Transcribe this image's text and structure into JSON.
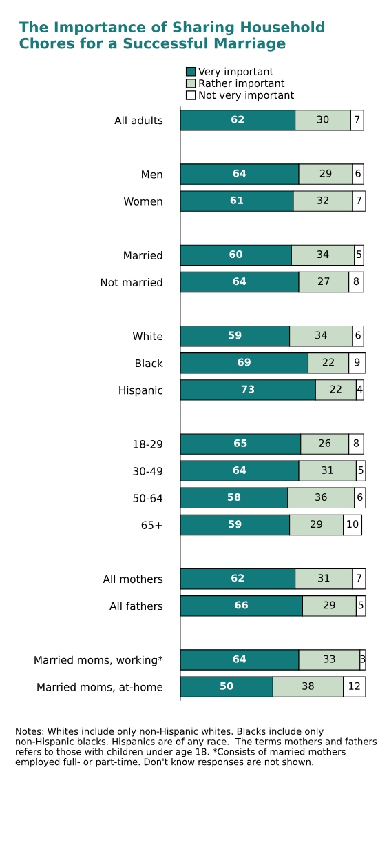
{
  "chart_data": {
    "type": "bar",
    "orientation": "horizontal",
    "stacked": true,
    "data_labels": true,
    "legend": "top",
    "grid": false,
    "title": "The Importance of Sharing Household Chores for a Successful Marriage",
    "categories": [
      "All adults",
      null,
      "Men",
      "Women",
      null,
      "Married",
      "Not married",
      null,
      "White",
      "Black",
      "Hispanic",
      null,
      "18-29",
      "30-49",
      "50-64",
      "65+",
      null,
      "All mothers",
      "All fathers",
      null,
      "Married moms, working*",
      "Married moms, at-home"
    ],
    "series": [
      {
        "name": "Very important",
        "color": "#127a7a",
        "values": [
          62,
          null,
          64,
          61,
          null,
          60,
          64,
          null,
          59,
          69,
          73,
          null,
          65,
          64,
          58,
          59,
          null,
          62,
          66,
          null,
          64,
          50
        ]
      },
      {
        "name": "Rather important",
        "color": "#c8dcc8",
        "values": [
          30,
          null,
          29,
          32,
          null,
          34,
          27,
          null,
          34,
          22,
          22,
          null,
          26,
          31,
          36,
          29,
          null,
          31,
          29,
          null,
          33,
          38
        ]
      },
      {
        "name": "Not very important",
        "color": "#ffffff",
        "values": [
          7,
          null,
          6,
          7,
          null,
          5,
          8,
          null,
          6,
          9,
          4,
          null,
          8,
          5,
          6,
          10,
          null,
          7,
          5,
          null,
          3,
          12
        ]
      }
    ],
    "annotations": [
      "Notes: Whites include only non-Hispanic whites. Blacks include only non-Hispanic blacks. Hispanics are of any race.  The terms mothers and fathers refers to those with children under age 18. *Consists of married mothers employed full- or part-time. Don't know responses are not shown."
    ]
  }
}
